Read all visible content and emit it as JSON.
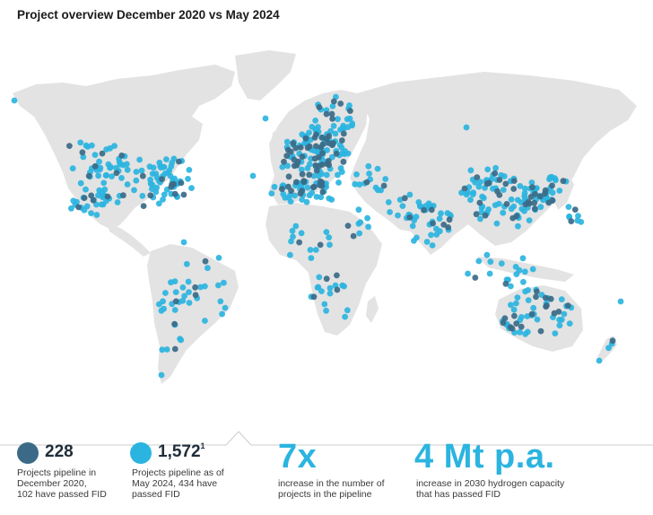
{
  "title": "Project overview December 2020 vs May 2024",
  "colors": {
    "dark": "#3b6a87",
    "light": "#2bb4e0",
    "land": "#e3e3e3"
  },
  "stats": [
    {
      "value": "228",
      "text1": "Projects pipeline in",
      "text2": "December 2020,",
      "text3": "102 have passed FID"
    },
    {
      "value": "1,572",
      "sup": "1",
      "text1": "Projects pipeline as of",
      "text2": "May 2024, 434 have",
      "text3": "passed FID"
    },
    {
      "value": "7x",
      "text1": "increase in the number of",
      "text2": "projects in the pipeline"
    },
    {
      "value": "4 Mt p.a.",
      "text1": "increase in 2030 hydrogen capacity",
      "text2": "that has passed FID"
    }
  ]
}
